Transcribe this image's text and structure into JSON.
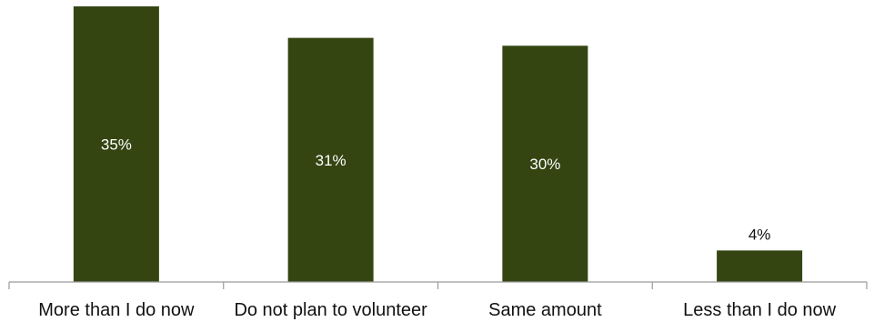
{
  "chart_data": {
    "type": "bar",
    "categories": [
      "More than I do now",
      "Do not plan to volunteer",
      "Same amount",
      "Less than I do now"
    ],
    "values": [
      35,
      31,
      30,
      4
    ],
    "value_labels": [
      "35%",
      "31%",
      "30%",
      "4%"
    ],
    "unit": "%",
    "title": "",
    "xlabel": "",
    "ylabel": "",
    "ylim": [
      0,
      35
    ],
    "grid": false,
    "legend": "none",
    "colors": {
      "bar": "#344512",
      "label_inside": "#ffffff",
      "label_outside": "#111111",
      "axis": "#9a9a9a"
    }
  }
}
